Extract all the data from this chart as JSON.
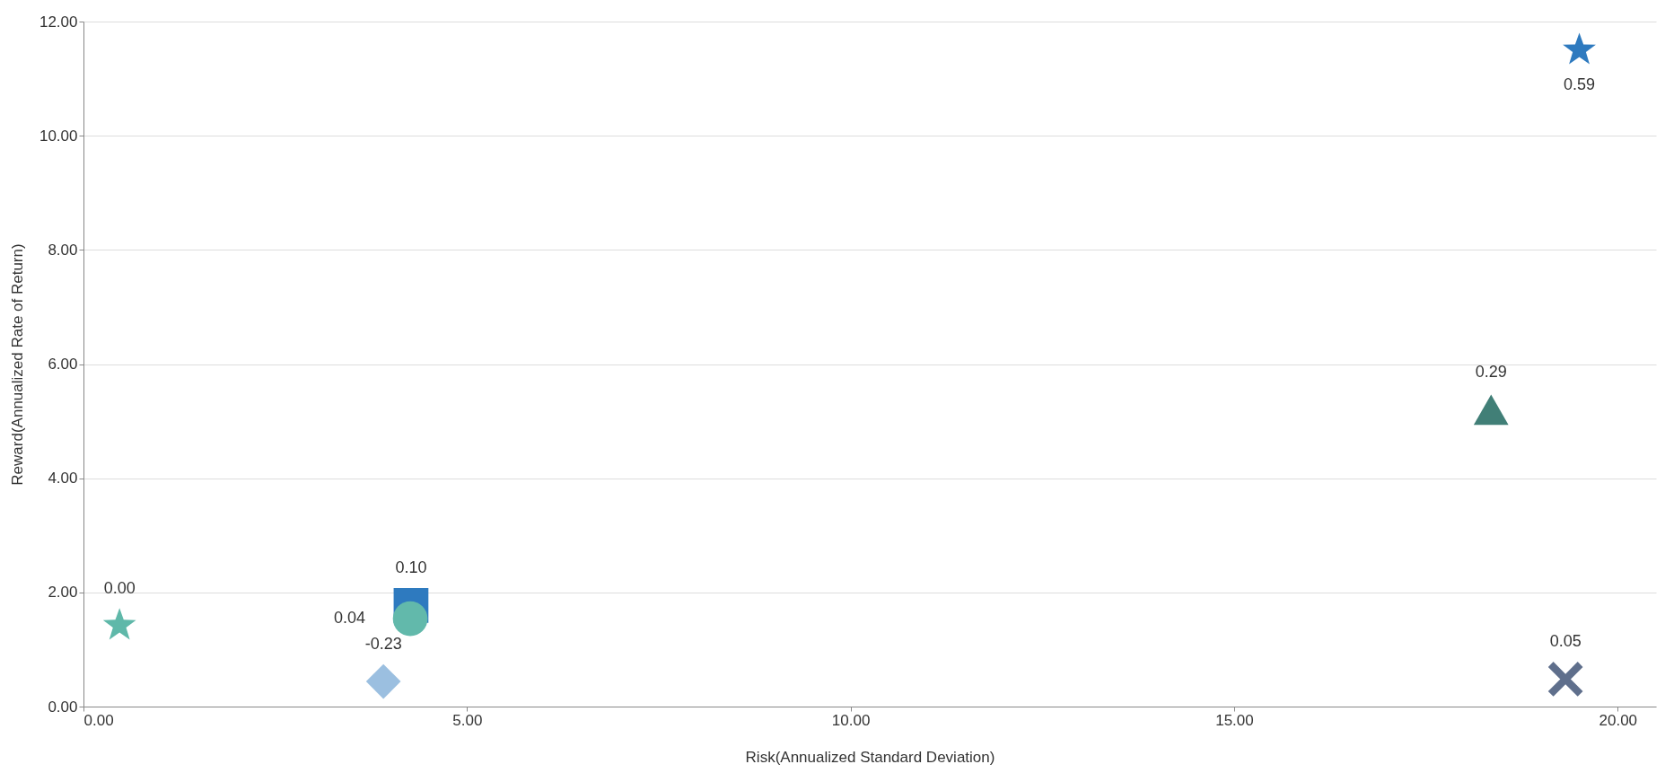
{
  "chart_data": {
    "type": "scatter",
    "xlabel": "Risk(Annualized Standard Deviation)",
    "ylabel": "Reward(Annualized Rate of Return)",
    "xlim": [
      0,
      20.5
    ],
    "ylim": [
      0,
      12
    ],
    "xticks": [
      {
        "value": 0,
        "label": "0.00"
      },
      {
        "value": 5,
        "label": "5.00"
      },
      {
        "value": 10,
        "label": "10.00"
      },
      {
        "value": 15,
        "label": "15.00"
      },
      {
        "value": 20,
        "label": "20.00"
      }
    ],
    "yticks": [
      {
        "value": 0,
        "label": "0.00"
      },
      {
        "value": 2,
        "label": "2.00"
      },
      {
        "value": 4,
        "label": "4.00"
      },
      {
        "value": 6,
        "label": "6.00"
      },
      {
        "value": 8,
        "label": "8.00"
      },
      {
        "value": 10,
        "label": "10.00"
      },
      {
        "value": 12,
        "label": "12.00"
      }
    ],
    "grid": "y",
    "series": [
      {
        "color": "#5fb8a9",
        "marker": "star",
        "x": [
          0.47
        ],
        "values": [
          1.42
        ]
      },
      {
        "color": "#2e7abf",
        "marker": "square",
        "x": [
          4.27
        ],
        "values": [
          1.77
        ]
      },
      {
        "color": "#62b9ab",
        "marker": "circle",
        "x": [
          4.26
        ],
        "values": [
          1.54
        ]
      },
      {
        "color": "#9bbfe0",
        "marker": "diamond",
        "x": [
          3.91
        ],
        "values": [
          0.44
        ]
      },
      {
        "color": "#2e7abf",
        "marker": "star",
        "x": [
          19.5
        ],
        "values": [
          11.5
        ]
      },
      {
        "color": "#417f77",
        "marker": "triangle",
        "x": [
          18.35
        ],
        "values": [
          5.2
        ]
      },
      {
        "color": "#5f6f8c",
        "marker": "cross",
        "x": [
          19.32
        ],
        "values": [
          0.48
        ]
      }
    ],
    "annotations": [
      {
        "text": "0.00",
        "x": 0.47,
        "y": 1.42
      },
      {
        "text": "0.10",
        "x": 4.27,
        "y": 1.77
      },
      {
        "text": "0.04",
        "x": 4.26,
        "y": 1.54
      },
      {
        "text": "-0.23",
        "x": 3.91,
        "y": 0.44
      },
      {
        "text": "0.59",
        "x": 19.5,
        "y": 11.5
      },
      {
        "text": "0.29",
        "x": 18.35,
        "y": 5.2
      },
      {
        "text": "0.05",
        "x": 19.32,
        "y": 0.48
      }
    ]
  }
}
